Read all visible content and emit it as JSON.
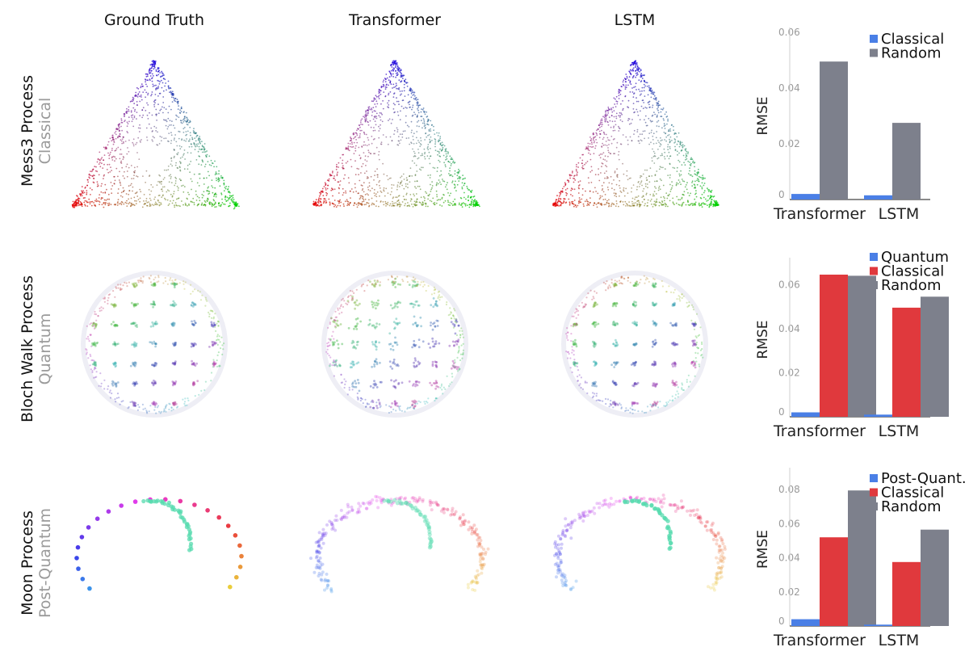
{
  "columns": [
    "Ground Truth",
    "Transformer",
    "LSTM"
  ],
  "rows": [
    {
      "process": "Mess3 Process",
      "type": "Classical",
      "shape": "triangle"
    },
    {
      "process": "Bloch Walk Process",
      "type": "Quantum",
      "shape": "sphere"
    },
    {
      "process": "Moon Process",
      "type": "Post-Quantum",
      "shape": "moon"
    }
  ],
  "colors": {
    "Classical_mess3": "#4a7fe6",
    "Quantum": "#4a7fe6",
    "Post-Quant.": "#4a7fe6",
    "Classical": "#e0393d",
    "Random": "#7d808c"
  },
  "chart_data": [
    {
      "type": "bar",
      "title": "",
      "xlabel": "",
      "ylabel": "RMSE",
      "categories": [
        "Transformer",
        "LSTM"
      ],
      "ylim": [
        0,
        0.06
      ],
      "yticks": [
        "0",
        "0.02",
        "0.04",
        "0.06"
      ],
      "series": [
        {
          "name": "Classical",
          "color": "#4a7fe6",
          "values": [
            0.002,
            0.0015
          ]
        },
        {
          "name": "Random",
          "color": "#7d808c",
          "values": [
            0.0495,
            0.0275
          ]
        }
      ]
    },
    {
      "type": "bar",
      "title": "",
      "xlabel": "",
      "ylabel": "RMSE",
      "categories": [
        "Transformer",
        "LSTM"
      ],
      "ylim": [
        0,
        0.07
      ],
      "yticks": [
        "0",
        "0.02",
        "0.04",
        "0.06"
      ],
      "series": [
        {
          "name": "Quantum",
          "color": "#4a7fe6",
          "values": [
            0.002,
            0.001
          ]
        },
        {
          "name": "Classical",
          "color": "#e0393d",
          "values": [
            0.0645,
            0.0495
          ]
        },
        {
          "name": "Random",
          "color": "#7d808c",
          "values": [
            0.064,
            0.0545
          ]
        }
      ]
    },
    {
      "type": "bar",
      "title": "",
      "xlabel": "",
      "ylabel": "RMSE",
      "categories": [
        "Transformer",
        "LSTM"
      ],
      "ylim": [
        0,
        0.09
      ],
      "yticks": [
        "0",
        "0.02",
        "0.04",
        "0.06",
        "0.08"
      ],
      "series": [
        {
          "name": "Post-Quant.",
          "color": "#4a7fe6",
          "values": [
            0.004,
            0.0008
          ]
        },
        {
          "name": "Classical",
          "color": "#e0393d",
          "values": [
            0.052,
            0.0375
          ]
        },
        {
          "name": "Random",
          "color": "#7d808c",
          "values": [
            0.0795,
            0.0565
          ]
        }
      ]
    }
  ]
}
